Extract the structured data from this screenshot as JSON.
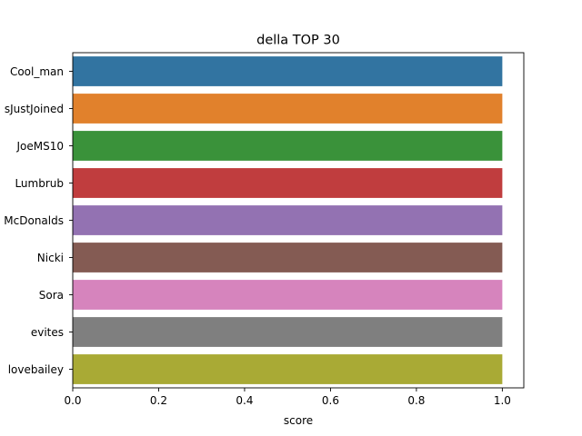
{
  "chart_data": {
    "type": "bar",
    "orientation": "horizontal",
    "title": "della TOP 30",
    "xlabel": "score",
    "ylabel": "",
    "xlim": [
      0,
      1.05
    ],
    "x_ticks": [
      "0.0",
      "0.2",
      "0.4",
      "0.6",
      "0.8",
      "1.0"
    ],
    "x_tick_values": [
      0,
      0.2,
      0.4,
      0.6,
      0.8,
      1.0
    ],
    "grid": false,
    "categories": [
      "Cool_man",
      "sJustJoined",
      "JoeMS10",
      "Lumbrub",
      "McDonalds",
      "Nicki",
      "Sora",
      "evites",
      "lovebailey"
    ],
    "values": [
      1.0,
      1.0,
      1.0,
      1.0,
      1.0,
      1.0,
      1.0,
      1.0,
      1.0
    ],
    "colors": [
      "#3274a1",
      "#e1812c",
      "#3a923a",
      "#c03d3e",
      "#9372b2",
      "#845b53",
      "#d684bd",
      "#7f7f7f",
      "#a9aa35"
    ]
  }
}
